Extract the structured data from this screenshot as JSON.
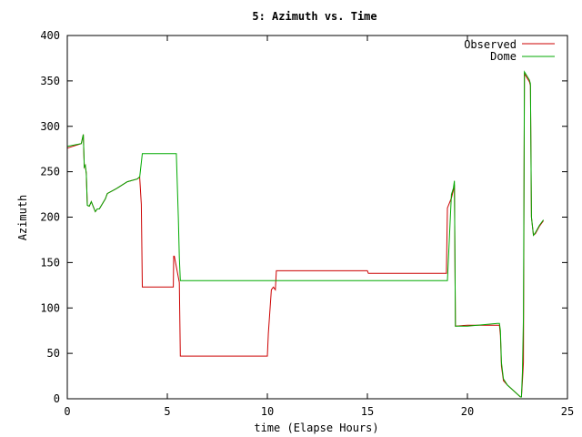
{
  "chart_data": {
    "type": "line",
    "title": "5: Azimuth vs. Time",
    "xlabel": "time (Elapse Hours)",
    "ylabel": "Azimuth",
    "xlim": [
      0,
      25
    ],
    "ylim": [
      0,
      400
    ],
    "x_ticks": [
      "0",
      "5",
      "10",
      "15",
      "20",
      "25"
    ],
    "y_ticks": [
      "0",
      "50",
      "100",
      "150",
      "200",
      "250",
      "300",
      "350",
      "400"
    ],
    "grid": false,
    "legend_position": "top-right",
    "series": [
      {
        "name": "Observed",
        "color": "#cc0000",
        "x": [
          0,
          0.7,
          0.75,
          0.8,
          0.85,
          0.9,
          0.95,
          1.0,
          1.1,
          1.2,
          1.4,
          1.5,
          1.6,
          1.9,
          2.0,
          2.5,
          3.0,
          3.5,
          3.6,
          3.62,
          3.7,
          3.75,
          5.3,
          5.32,
          5.35,
          5.6,
          5.65,
          10.0,
          10.05,
          10.2,
          10.3,
          10.4,
          10.45,
          15.0,
          15.05,
          18.95,
          19.0,
          19.2,
          19.3,
          19.35,
          19.4,
          20.0,
          20.5,
          21.0,
          21.5,
          21.6,
          21.65,
          21.7,
          21.8,
          22.0,
          22.5,
          22.65,
          22.7,
          22.75,
          22.8,
          22.85,
          23.1,
          23.15,
          23.2,
          23.3,
          23.4,
          23.6,
          23.8
        ],
        "y": [
          276,
          281,
          286,
          291,
          255,
          257,
          248,
          213,
          212,
          217,
          206,
          209,
          209,
          220,
          226,
          232,
          239,
          242,
          244,
          244,
          214,
          123,
          123,
          157,
          157,
          128,
          47,
          47,
          72,
          120,
          123,
          120,
          141,
          141,
          138,
          138,
          210,
          221,
          230,
          236,
          80,
          81,
          81,
          81,
          81,
          81,
          70,
          36,
          20,
          15,
          5,
          2,
          2,
          20,
          40,
          358,
          349,
          345,
          200,
          180,
          182,
          190,
          196
        ]
      },
      {
        "name": "Dome",
        "color": "#00aa00",
        "x": [
          0,
          0.7,
          0.75,
          0.8,
          0.85,
          0.9,
          0.95,
          1.0,
          1.1,
          1.2,
          1.4,
          1.5,
          1.6,
          1.9,
          2.0,
          2.5,
          3.0,
          3.5,
          3.6,
          3.62,
          3.7,
          3.75,
          5.45,
          5.55,
          5.6,
          5.65,
          19.0,
          19.2,
          19.3,
          19.35,
          19.4,
          20.0,
          20.5,
          21.0,
          21.5,
          21.6,
          21.65,
          21.7,
          21.8,
          22.0,
          22.5,
          22.65,
          22.7,
          22.75,
          22.8,
          22.85,
          23.1,
          23.15,
          23.2,
          23.3,
          23.4,
          23.6,
          23.8
        ],
        "y": [
          278,
          281,
          286,
          291,
          255,
          257,
          248,
          213,
          212,
          217,
          206,
          209,
          209,
          220,
          226,
          232,
          239,
          242,
          244,
          244,
          260,
          270,
          270,
          200,
          156,
          130,
          130,
          225,
          232,
          240,
          80,
          80,
          81,
          82,
          83,
          83,
          75,
          40,
          22,
          15,
          5,
          2,
          2,
          30,
          90,
          360,
          351,
          347,
          200,
          180,
          183,
          191,
          197
        ]
      }
    ]
  }
}
